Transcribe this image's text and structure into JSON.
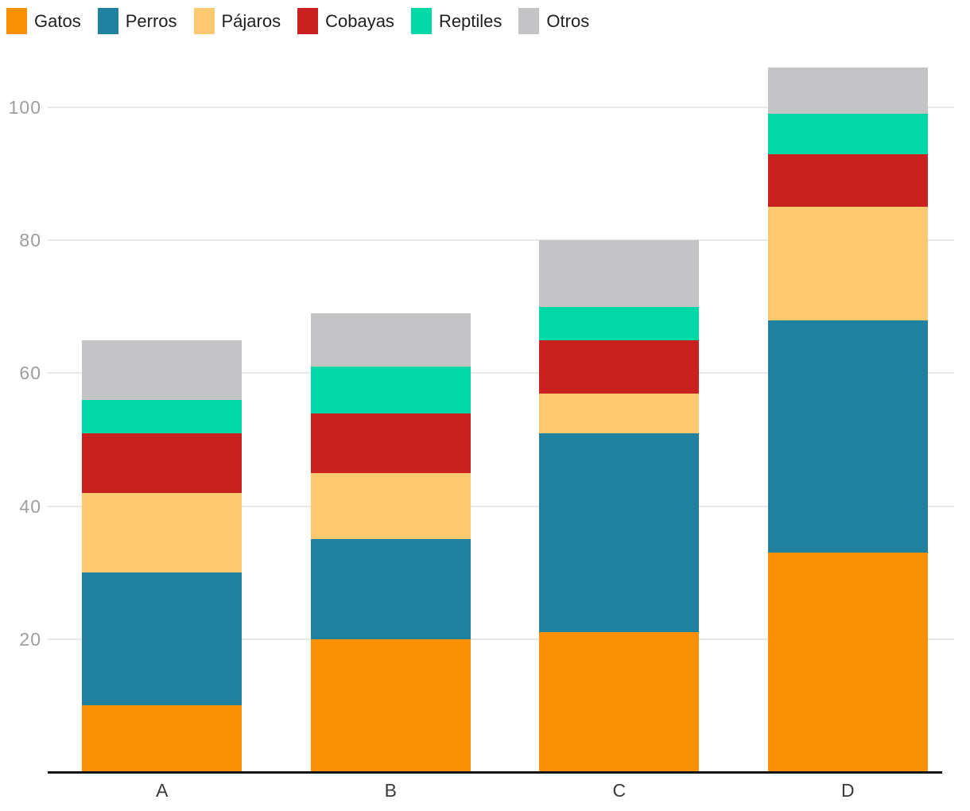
{
  "chart_data": {
    "type": "bar",
    "stacked": true,
    "title": "",
    "xlabel": "",
    "ylabel": "",
    "categories": [
      "A",
      "B",
      "C",
      "D"
    ],
    "series": [
      {
        "name": "Gatos",
        "color": "#FA9005",
        "values": [
          10,
          20,
          21,
          33
        ]
      },
      {
        "name": "Perros",
        "color": "#20819E",
        "values": [
          20,
          15,
          30,
          35
        ]
      },
      {
        "name": "Pájaros",
        "color": "#FCC870",
        "values": [
          12,
          10,
          6,
          17
        ]
      },
      {
        "name": "Cobayas",
        "color": "#C92020",
        "values": [
          9,
          9,
          8,
          8
        ]
      },
      {
        "name": "Reptiles",
        "color": "#00D9A6",
        "values": [
          5,
          7,
          5,
          6
        ]
      },
      {
        "name": "Otros",
        "color": "#C4C4C6",
        "values": [
          9,
          8,
          10,
          7
        ]
      }
    ],
    "totals": [
      65,
      69,
      80,
      106
    ],
    "yticks": [
      20,
      40,
      60,
      80,
      100
    ],
    "ylim": [
      0,
      106
    ],
    "grid": true,
    "legend_position": "top-left",
    "axis_colors": {
      "gridline": "#e8e8e8",
      "baseline": "#141414",
      "y_tick_text": "#9e9e9e",
      "x_tick_text": "#3a3a3a",
      "legend_text": "#1f1f1f"
    }
  }
}
